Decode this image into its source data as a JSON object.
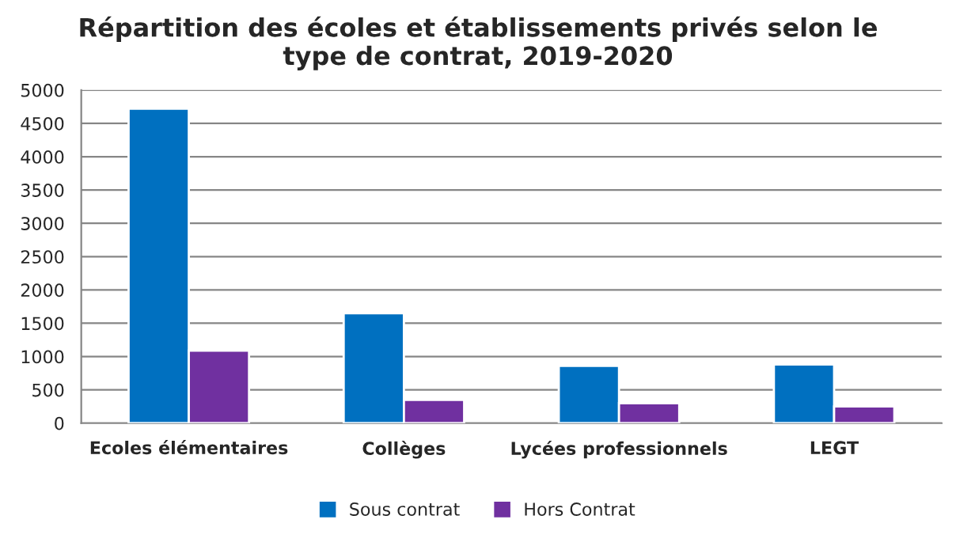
{
  "chart_data": {
    "type": "bar",
    "title": "Répartition des écoles et établissements privés selon le\ntype de contrat, 2019-2020",
    "categories": [
      "Ecoles élémentaires",
      "Collèges",
      "Lycées professionnels",
      "LEGT"
    ],
    "series": [
      {
        "name": "Sous contrat",
        "color": "#0070c0",
        "values": [
          4720,
          1650,
          860,
          880
        ]
      },
      {
        "name": "Hors Contrat",
        "color": "#7030a0",
        "values": [
          1090,
          350,
          300,
          250
        ]
      }
    ],
    "ylim": [
      0,
      5000
    ],
    "yticks": [
      0,
      500,
      1000,
      1500,
      2000,
      2500,
      3000,
      3500,
      4000,
      4500,
      5000
    ],
    "grid": "y",
    "legend": "bottom"
  }
}
